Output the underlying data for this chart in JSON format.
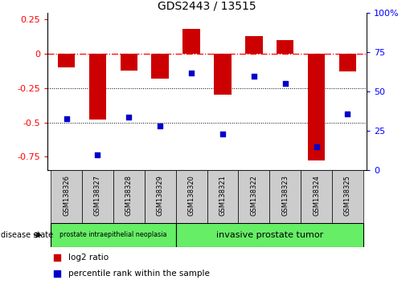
{
  "title": "GDS2443 / 13515",
  "samples": [
    "GSM138326",
    "GSM138327",
    "GSM138328",
    "GSM138329",
    "GSM138320",
    "GSM138321",
    "GSM138322",
    "GSM138323",
    "GSM138324",
    "GSM138325"
  ],
  "log2_ratio": [
    -0.1,
    -0.48,
    -0.12,
    -0.18,
    0.18,
    -0.3,
    0.13,
    0.1,
    -0.78,
    -0.13
  ],
  "percentile_rank": [
    33,
    10,
    34,
    28,
    62,
    23,
    60,
    55,
    15,
    36
  ],
  "group_labels": [
    "prostate intraepithelial neoplasia",
    "invasive prostate tumor"
  ],
  "group_boundaries": [
    4,
    10
  ],
  "bar_color": "#CC0000",
  "dot_color": "#0000CC",
  "green_color": "#66EE66",
  "gray_color": "#CCCCCC",
  "ylim_left": [
    -0.85,
    0.3
  ],
  "ylim_right": [
    0,
    100
  ],
  "yticks_left": [
    0.25,
    0.0,
    -0.25,
    -0.5,
    -0.75
  ],
  "yticks_right": [
    100,
    75,
    50,
    25,
    0
  ],
  "ytick_left_labels": [
    "0.25",
    "0",
    "-0.25",
    "-0.5",
    "-0.75"
  ],
  "ytick_right_labels": [
    "100%",
    "75",
    "50",
    "25",
    "0"
  ],
  "hline_y": 0.0,
  "dotted_lines": [
    -0.25,
    -0.5
  ],
  "bar_width": 0.55,
  "xlim": [
    -0.6,
    9.6
  ]
}
